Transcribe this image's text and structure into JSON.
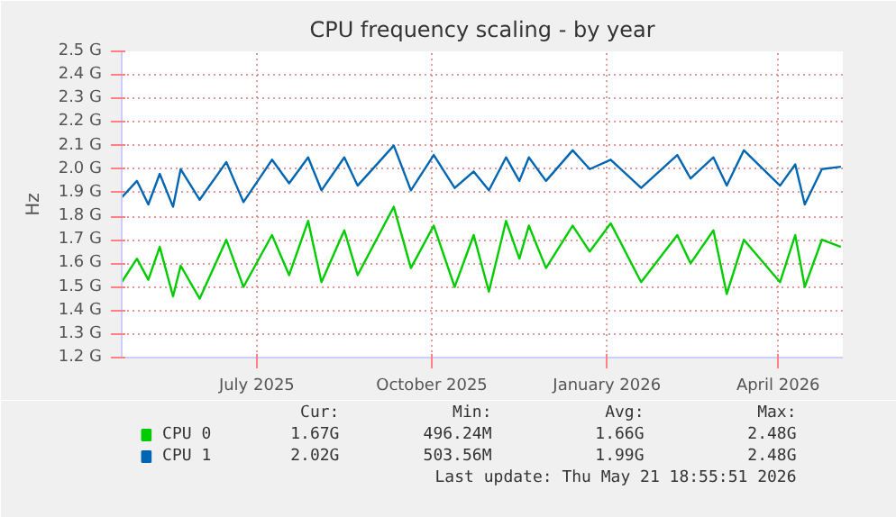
{
  "chart_data": {
    "type": "line",
    "title": "CPU frequency scaling - by year",
    "ylabel": "Hz",
    "x": [
      "2025-04-21",
      "2025-04-29",
      "2025-05-05",
      "2025-05-11",
      "2025-05-18",
      "2025-05-22",
      "2025-06-01",
      "2025-06-15",
      "2025-06-24",
      "2025-07-09",
      "2025-07-18",
      "2025-07-28",
      "2025-08-04",
      "2025-08-16",
      "2025-08-23",
      "2025-09-11",
      "2025-09-20",
      "2025-10-02",
      "2025-10-13",
      "2025-10-23",
      "2025-10-31",
      "2025-11-09",
      "2025-11-16",
      "2025-11-21",
      "2025-11-30",
      "2025-12-14",
      "2025-12-23",
      "2026-01-03",
      "2026-01-19",
      "2026-02-07",
      "2026-02-14",
      "2026-02-26",
      "2026-03-05",
      "2026-03-14",
      "2026-04-02",
      "2026-04-10",
      "2026-04-15",
      "2026-04-24",
      "2026-05-04"
    ],
    "series": [
      {
        "name": "CPU 0",
        "color": "#00cc00",
        "values": [
          1.52,
          1.62,
          1.53,
          1.67,
          1.46,
          1.59,
          1.45,
          1.7,
          1.5,
          1.72,
          1.55,
          1.78,
          1.52,
          1.74,
          1.55,
          1.84,
          1.58,
          1.76,
          1.5,
          1.72,
          1.48,
          1.78,
          1.62,
          1.76,
          1.58,
          1.76,
          1.65,
          1.77,
          1.52,
          1.72,
          1.6,
          1.74,
          1.47,
          1.7,
          1.52,
          1.72,
          1.5,
          1.7,
          1.67
        ]
      },
      {
        "name": "CPU 1",
        "color": "#0066b3",
        "values": [
          1.88,
          1.95,
          1.85,
          1.98,
          1.84,
          2.0,
          1.87,
          2.03,
          1.86,
          2.04,
          1.94,
          2.05,
          1.91,
          2.05,
          1.93,
          2.1,
          1.91,
          2.06,
          1.92,
          1.99,
          1.91,
          2.05,
          1.95,
          2.05,
          1.95,
          2.08,
          2.0,
          2.04,
          1.92,
          2.06,
          1.96,
          2.05,
          1.93,
          2.08,
          1.93,
          2.02,
          1.85,
          2.0,
          2.01
        ]
      }
    ],
    "xlim": [
      "2025-04-21",
      "2026-05-05"
    ],
    "xticks": [
      {
        "value": "2025-07-01",
        "label": "July 2025"
      },
      {
        "value": "2025-10-01",
        "label": "October 2025"
      },
      {
        "value": "2026-01-01",
        "label": "January 2026"
      },
      {
        "value": "2026-04-01",
        "label": "April 2026"
      }
    ],
    "ylim": [
      1.2,
      2.5
    ],
    "yticks": [
      {
        "value": 1.2,
        "label": "1.2 G"
      },
      {
        "value": 1.3,
        "label": "1.3 G"
      },
      {
        "value": 1.4,
        "label": "1.4 G"
      },
      {
        "value": 1.5,
        "label": "1.5 G"
      },
      {
        "value": 1.6,
        "label": "1.6 G"
      },
      {
        "value": 1.7,
        "label": "1.7 G"
      },
      {
        "value": 1.8,
        "label": "1.8 G"
      },
      {
        "value": 1.9,
        "label": "1.9 G"
      },
      {
        "value": 2.0,
        "label": "2.0 G"
      },
      {
        "value": 2.1,
        "label": "2.1 G"
      },
      {
        "value": 2.2,
        "label": "2.2 G"
      },
      {
        "value": 2.3,
        "label": "2.3 G"
      },
      {
        "value": 2.4,
        "label": "2.4 G"
      },
      {
        "value": 2.5,
        "label": "2.5 G"
      }
    ],
    "grid": true,
    "legend": "bottom",
    "marker": "none",
    "line_style": "solid",
    "annotations": [
      "Cur:",
      "Min:",
      "Avg:",
      "Max:",
      "1.67G",
      "496.24M",
      "1.66G",
      "2.48G",
      "2.02G",
      "503.56M",
      "1.99G",
      "2.48G",
      "Last update: Thu May 21 18:55:51 2026"
    ]
  }
}
